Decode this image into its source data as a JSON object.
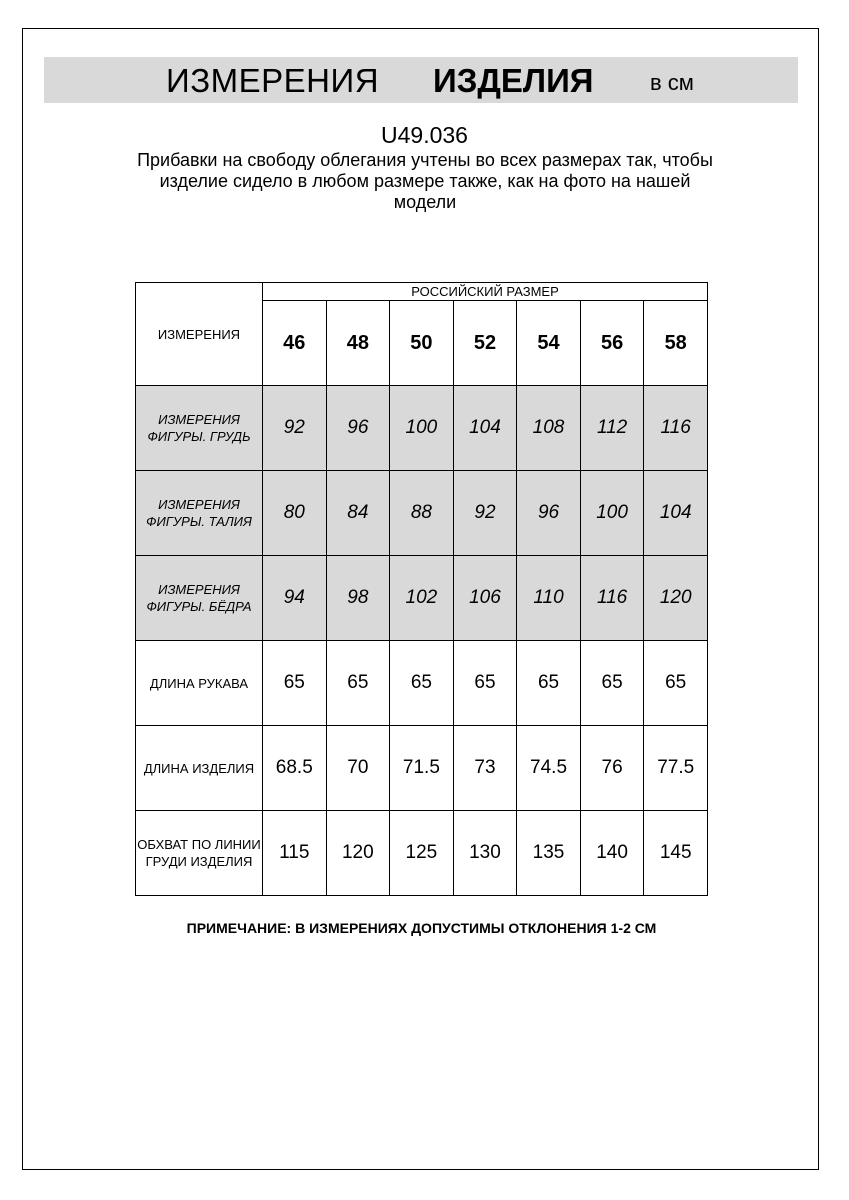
{
  "title": {
    "part1": "ИЗМЕРЕНИЯ",
    "part2": "ИЗДЕЛИЯ",
    "unit": "в см"
  },
  "product_code": "U49.036",
  "description": "Прибавки на свободу облегания учтены во всех размерах так, чтобы изделие сидело в любом размере также, как на фото на нашей модели",
  "table": {
    "corner_label": "ИЗМЕРЕНИЯ",
    "size_group_label": "РОССИЙСКИЙ РАЗМЕР",
    "sizes": [
      "46",
      "48",
      "50",
      "52",
      "54",
      "56",
      "58"
    ],
    "rows": [
      {
        "label": "ИЗМЕРЕНИЯ ФИГУРЫ. ГРУДЬ",
        "shaded": true,
        "values": [
          "92",
          "96",
          "100",
          "104",
          "108",
          "112",
          "116"
        ]
      },
      {
        "label": "ИЗМЕРЕНИЯ ФИГУРЫ. ТАЛИЯ",
        "shaded": true,
        "values": [
          "80",
          "84",
          "88",
          "92",
          "96",
          "100",
          "104"
        ]
      },
      {
        "label": "ИЗМЕРЕНИЯ ФИГУРЫ. БЁДРА",
        "shaded": true,
        "values": [
          "94",
          "98",
          "102",
          "106",
          "110",
          "116",
          "120"
        ]
      },
      {
        "label": "ДЛИНА РУКАВА",
        "shaded": false,
        "values": [
          "65",
          "65",
          "65",
          "65",
          "65",
          "65",
          "65"
        ]
      },
      {
        "label": "ДЛИНА ИЗДЕЛИЯ",
        "shaded": false,
        "values": [
          "68.5",
          "70",
          "71.5",
          "73",
          "74.5",
          "76",
          "77.5"
        ]
      },
      {
        "label": "ОБХВАТ ПО ЛИНИИ ГРУДИ ИЗДЕЛИЯ",
        "shaded": false,
        "values": [
          "115",
          "120",
          "125",
          "130",
          "135",
          "140",
          "145"
        ]
      }
    ]
  },
  "note": "ПРИМЕЧАНИЕ: В ИЗМЕРЕНИЯХ ДОПУСТИМЫ ОТКЛОНЕНИЯ 1-2 СМ",
  "colors": {
    "shade": "#d9d9d9",
    "border": "#000000"
  }
}
